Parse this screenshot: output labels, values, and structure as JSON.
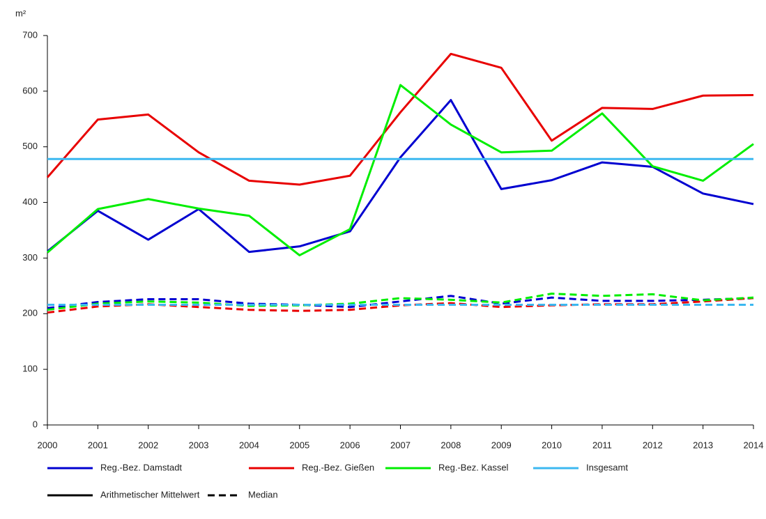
{
  "chart_data": {
    "type": "line",
    "y_label": "m²",
    "categories": [
      "2000",
      "2001",
      "2002",
      "2003",
      "2004",
      "2005",
      "2006",
      "2007",
      "2008",
      "2009",
      "2010",
      "2011",
      "2012",
      "2013",
      "2014"
    ],
    "series": [
      {
        "name": "Reg.-Bez. Damstadt",
        "color": "#0000d0",
        "values": [
          312,
          385,
          333,
          388,
          311,
          321,
          348,
          481,
          584,
          424,
          440,
          472,
          464,
          416,
          397
        ],
        "median": [
          210,
          221,
          226,
          226,
          218,
          216,
          212,
          222,
          232,
          218,
          229,
          223,
          223,
          225,
          228
        ]
      },
      {
        "name": "Reg.-Bez. Gießen",
        "color": "#e80000",
        "values": [
          445,
          549,
          558,
          490,
          439,
          432,
          448,
          562,
          667,
          642,
          511,
          570,
          568,
          592,
          593
        ],
        "median": [
          202,
          213,
          217,
          212,
          207,
          205,
          207,
          215,
          219,
          212,
          215,
          217,
          217,
          222,
          228
        ]
      },
      {
        "name": "Reg.-Bez. Kassel",
        "color": "#00ee00",
        "values": [
          310,
          388,
          406,
          389,
          376,
          305,
          352,
          611,
          540,
          490,
          493,
          560,
          465,
          439,
          505
        ],
        "median": [
          207,
          218,
          222,
          220,
          214,
          215,
          218,
          228,
          225,
          220,
          236,
          232,
          235,
          224,
          229
        ]
      },
      {
        "name": "Insgesamt",
        "color": "#3cb8f0",
        "values": [
          478,
          478,
          478,
          478,
          478,
          478,
          478,
          478,
          478,
          478,
          478,
          478,
          478,
          478,
          478
        ],
        "median": [
          216,
          216,
          216,
          216,
          216,
          216,
          216,
          216,
          216,
          216,
          216,
          216,
          216,
          216,
          216
        ]
      }
    ],
    "style_legend": [
      "Arithmetischer Mittelwert",
      "Median"
    ],
    "ylim": [
      0,
      700
    ],
    "yticks": [
      0,
      100,
      200,
      300,
      400,
      500,
      600,
      700
    ],
    "grid": false
  }
}
